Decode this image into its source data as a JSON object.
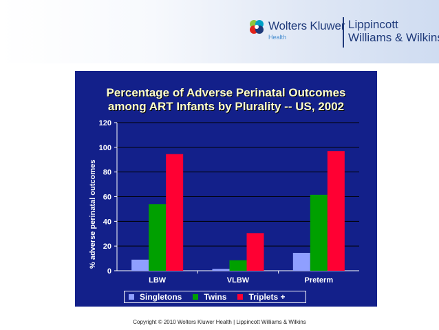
{
  "logo": {
    "brand": "Wolters Kluwer",
    "sub": "Health",
    "partner_line1": "Lippincott",
    "partner_line2": "Williams & Wilkins"
  },
  "chart_data": {
    "type": "bar",
    "title_line1": "Percentage of Adverse Perinatal Outcomes",
    "title_line2": "among ART Infants by Plurality -- US, 2002",
    "xlabel": "",
    "ylabel": "% adverse perinatal outcomes",
    "ylim": [
      0,
      120
    ],
    "yticks": [
      0,
      20,
      40,
      60,
      80,
      100,
      120
    ],
    "grid": true,
    "legend_position": "bottom",
    "categories": [
      "LBW",
      "VLBW",
      "Preterm"
    ],
    "series": [
      {
        "name": "Singletons",
        "color": "#8f9fff",
        "values": [
          9,
          1.5,
          14.5
        ]
      },
      {
        "name": "Twins",
        "color": "#00a000",
        "values": [
          54,
          8.5,
          61.5
        ]
      },
      {
        "name": "Triplets +",
        "color": "#ff0033",
        "values": [
          94.5,
          30.5,
          97
        ]
      }
    ]
  },
  "footer": {
    "copyright": "Copyright © 2010 Wolters Kluwer Health | Lippincott Williams & Wilkins"
  }
}
